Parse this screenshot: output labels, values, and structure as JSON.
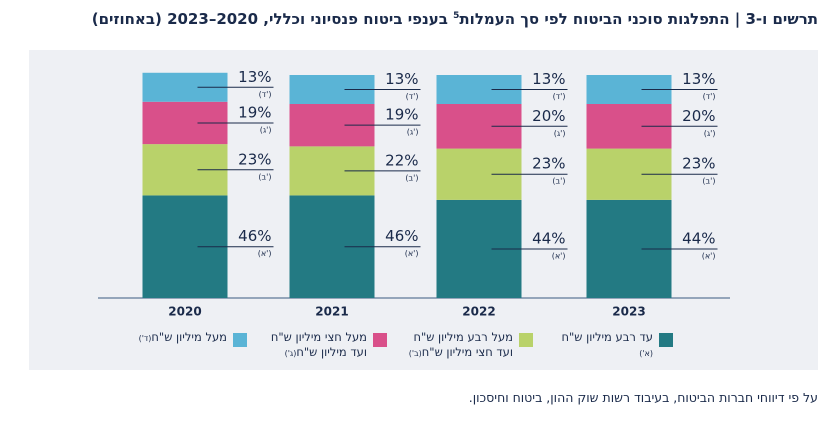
{
  "chart_data": {
    "type": "stacked_bar",
    "title": "תרשים ו-3 | התפלגות סוכני הביטוח לפי סך העמלות",
    "title_note": "5",
    "title_rest": " בענפי ביטוח פנסיוני וכללי, 2020–2023 (באחוזים)",
    "categories": [
      "2020",
      "2021",
      "2022",
      "2023"
    ],
    "ylim": [
      0,
      100
    ],
    "series": [
      {
        "name": "עד רבע מיליון ש\"ח",
        "letter": "(א')",
        "color": "#237a83",
        "values": [
          46,
          46,
          44,
          44
        ],
        "value_labels": [
          "46%",
          "46%",
          "44%",
          "44%"
        ]
      },
      {
        "name": "מעל רבע מיליון ש\"ח ועד חצי מיליון ש\"ח",
        "letter": "(ב')",
        "color": "#b9d26a",
        "values": [
          23,
          22,
          23,
          23
        ],
        "value_labels": [
          "23%",
          "22%",
          "23%",
          "23%"
        ]
      },
      {
        "name": "מעל חצי מיליון ש\"ח ועד מיליון ש\"ח",
        "letter": "(ג')",
        "color": "#d9508a",
        "values": [
          19,
          19,
          20,
          20
        ],
        "value_labels": [
          "19%",
          "19%",
          "20%",
          "20%"
        ]
      },
      {
        "name": "מעל מיליון ש\"ח",
        "letter": "(ד')",
        "color": "#5ab4d6",
        "values": [
          13,
          13,
          13,
          13
        ],
        "value_labels": [
          "13%",
          "13%",
          "13%",
          "13%"
        ]
      }
    ],
    "source": "על פי דיווחי חברות הביטוח, בעיבוד רשות שוק ההון, ביטוח וחיסכון."
  }
}
